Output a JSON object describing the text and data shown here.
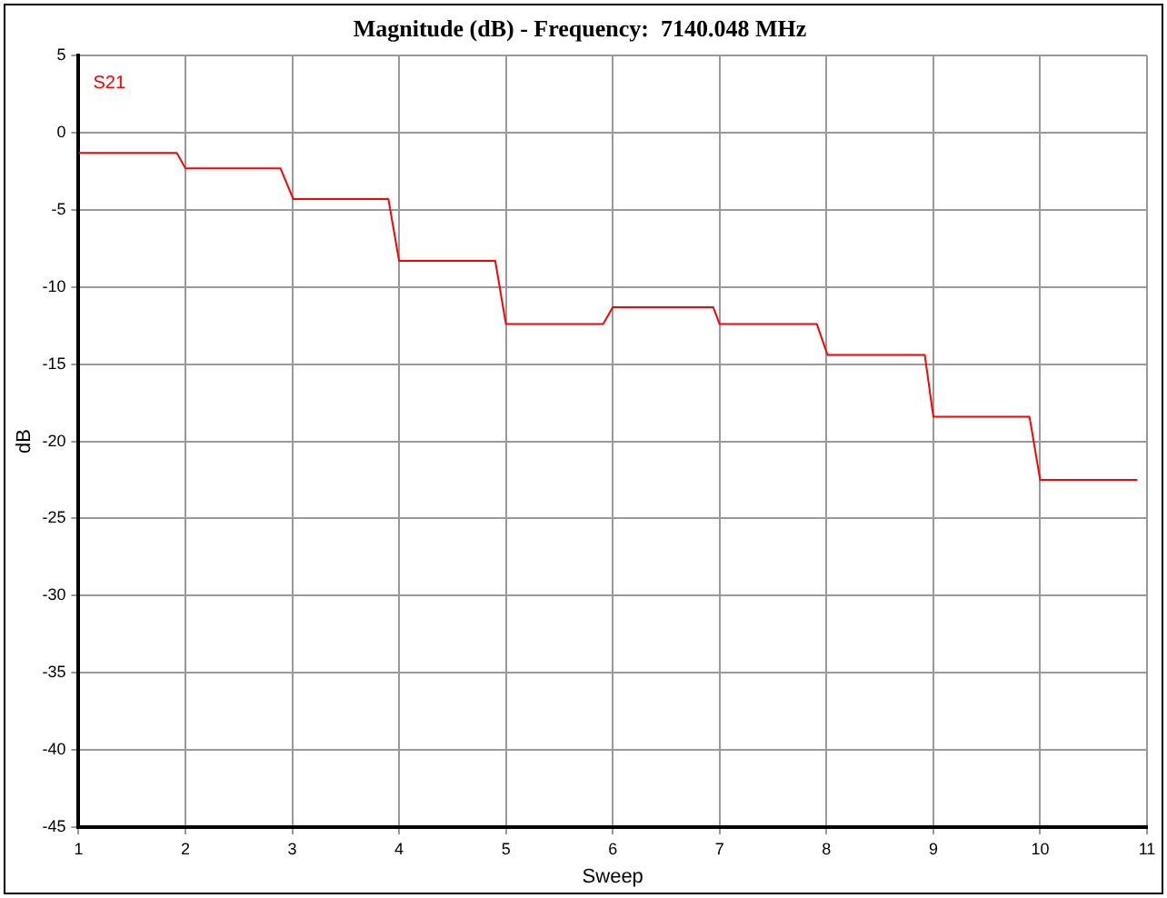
{
  "chart_data": {
    "type": "line",
    "title": "Magnitude (dB) - Frequency:  7140.048 MHz",
    "xlabel": "Sweep",
    "ylabel": "dB",
    "series": [
      {
        "name": "S21",
        "color": "#ff0000",
        "x": [
          1,
          1.92,
          2.0,
          2.89,
          3.01,
          3.9,
          4.0,
          4.9,
          5.0,
          5.91,
          6.0,
          6.94,
          7.0,
          7.91,
          8.01,
          8.92,
          9.0,
          9.9,
          10.0,
          10.91
        ],
        "values": [
          -1.3,
          -1.3,
          -2.3,
          -2.3,
          -4.3,
          -4.3,
          -8.3,
          -8.3,
          -12.4,
          -12.4,
          -11.3,
          -11.3,
          -12.4,
          -12.4,
          -14.4,
          -14.4,
          -18.4,
          -18.4,
          -22.5,
          -22.5
        ]
      }
    ],
    "xlim": [
      1,
      11
    ],
    "xticks": [
      1,
      2,
      3,
      4,
      5,
      6,
      7,
      8,
      9,
      10,
      11
    ],
    "ylim": [
      -45,
      5
    ],
    "yticks": [
      -45,
      -40,
      -35,
      -30,
      -25,
      -20,
      -15,
      -10,
      -5,
      0,
      5
    ],
    "grid": true,
    "legend": "top left",
    "marker": "none",
    "line_style": "solid"
  }
}
